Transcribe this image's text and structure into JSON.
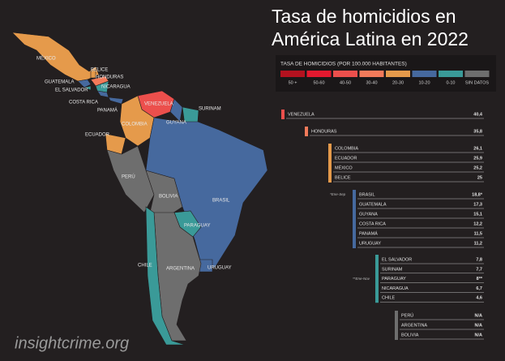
{
  "title_line1": "Tasa de homicidios en",
  "title_line2": "América Latina en 2022",
  "legend": {
    "title": "TASA DE HOMICIDIOS (POR 100.000 HABITANTES)",
    "items": [
      {
        "label": "50 +",
        "color": "#b3121f"
      },
      {
        "label": "50-60",
        "color": "#e3192f"
      },
      {
        "label": "40-50",
        "color": "#ec4f4c"
      },
      {
        "label": "30-40",
        "color": "#f27a5a"
      },
      {
        "label": "20-30",
        "color": "#e59a4b"
      },
      {
        "label": "10-20",
        "color": "#46699e"
      },
      {
        "label": "0-10",
        "color": "#3a9a98"
      },
      {
        "label": "SIN DATOS",
        "color": "#6e6e6e"
      }
    ]
  },
  "ranking": [
    {
      "color": "#ec4f4c",
      "rows": [
        {
          "country": "VENEZUELA",
          "value": "40,4"
        }
      ]
    },
    {
      "color": "#f27a5a",
      "rows": [
        {
          "country": "HONDURAS",
          "value": "35,8"
        }
      ]
    },
    {
      "color": "#e59a4b",
      "rows": [
        {
          "country": "COLOMBIA",
          "value": "26,1"
        },
        {
          "country": "ECUADOR",
          "value": "25,9"
        },
        {
          "country": "MÉXICO",
          "value": "25,2"
        },
        {
          "country": "BELICE",
          "value": "25"
        }
      ]
    },
    {
      "color": "#46699e",
      "note": "*Ene-Sep",
      "rows": [
        {
          "country": "BRASIL",
          "value": "18,8*"
        },
        {
          "country": "GUATEMALA",
          "value": "17,3"
        },
        {
          "country": "GUYANA",
          "value": "15,1"
        },
        {
          "country": "COSTA RICA",
          "value": "12,2"
        },
        {
          "country": "PANAMÁ",
          "value": "11,5"
        },
        {
          "country": "URUGUAY",
          "value": "11,2"
        }
      ]
    },
    {
      "color": "#3a9a98",
      "note": "**Ene-Nov",
      "rows": [
        {
          "country": "EL SALVADOR",
          "value": "7,8"
        },
        {
          "country": "SURINAM",
          "value": "7,7"
        },
        {
          "country": "PARAGUAY",
          "value": "8**"
        },
        {
          "country": "NICARAGUA",
          "value": "6,7"
        },
        {
          "country": "CHILE",
          "value": "4,6"
        }
      ]
    },
    {
      "color": "#6e6e6e",
      "rows": [
        {
          "country": "PERÚ",
          "value": "N/A"
        },
        {
          "country": "ARGENTINA",
          "value": "N/A"
        },
        {
          "country": "BOLIVIA",
          "value": "N/A"
        }
      ]
    }
  ],
  "map_labels": [
    "MÉXICO",
    "BELICE",
    "HONDURAS",
    "GUATEMALA",
    "EL SALVADOR",
    "NICARAGUA",
    "COSTA RICA",
    "PANAMÁ",
    "VENEZUELA",
    "SURINAM",
    "GUYANA",
    "COLOMBIA",
    "ECUADOR",
    "PERÚ",
    "BOLIVIA",
    "BRASIL",
    "PARAGUAY",
    "CHILE",
    "ARGENTINA",
    "URUGUAY"
  ],
  "watermark": "insightcrime.org"
}
